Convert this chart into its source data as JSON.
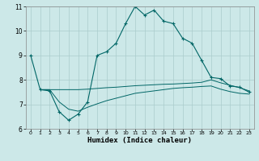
{
  "xlabel": "Humidex (Indice chaleur)",
  "background_color": "#cce8e8",
  "grid_color": "#aacccc",
  "line_color": "#006666",
  "xlim": [
    -0.5,
    23.5
  ],
  "ylim": [
    6,
    11
  ],
  "xticks": [
    0,
    1,
    2,
    3,
    4,
    5,
    6,
    7,
    8,
    9,
    10,
    11,
    12,
    13,
    14,
    15,
    16,
    17,
    18,
    19,
    20,
    21,
    22,
    23
  ],
  "yticks": [
    6,
    7,
    8,
    9,
    10,
    11
  ],
  "line1_x": [
    0,
    1,
    2,
    3,
    4,
    5,
    6,
    7,
    8,
    9,
    10,
    11,
    12,
    13,
    14,
    15,
    16,
    17,
    18,
    19,
    20,
    21,
    22,
    23
  ],
  "line1_y": [
    9.0,
    7.6,
    7.55,
    6.7,
    6.35,
    6.6,
    7.1,
    9.0,
    9.15,
    9.5,
    10.3,
    11.0,
    10.65,
    10.85,
    10.4,
    10.3,
    9.7,
    9.5,
    8.8,
    8.1,
    8.05,
    7.75,
    7.7,
    7.5
  ],
  "line2_x": [
    1,
    2,
    3,
    4,
    5,
    6,
    7,
    8,
    9,
    10,
    11,
    12,
    13,
    14,
    15,
    16,
    17,
    18,
    19,
    20,
    21,
    22,
    23
  ],
  "line2_y": [
    7.6,
    7.6,
    7.6,
    7.6,
    7.6,
    7.62,
    7.65,
    7.68,
    7.7,
    7.73,
    7.76,
    7.78,
    7.8,
    7.82,
    7.83,
    7.85,
    7.87,
    7.9,
    8.0,
    7.88,
    7.78,
    7.68,
    7.55
  ],
  "line3_x": [
    1,
    2,
    3,
    4,
    5,
    6,
    7,
    8,
    9,
    10,
    11,
    12,
    13,
    14,
    15,
    16,
    17,
    18,
    19,
    20,
    21,
    22,
    23
  ],
  "line3_y": [
    7.6,
    7.6,
    7.1,
    6.8,
    6.72,
    6.88,
    7.02,
    7.15,
    7.25,
    7.35,
    7.45,
    7.5,
    7.55,
    7.6,
    7.65,
    7.68,
    7.7,
    7.73,
    7.75,
    7.62,
    7.52,
    7.45,
    7.42
  ]
}
